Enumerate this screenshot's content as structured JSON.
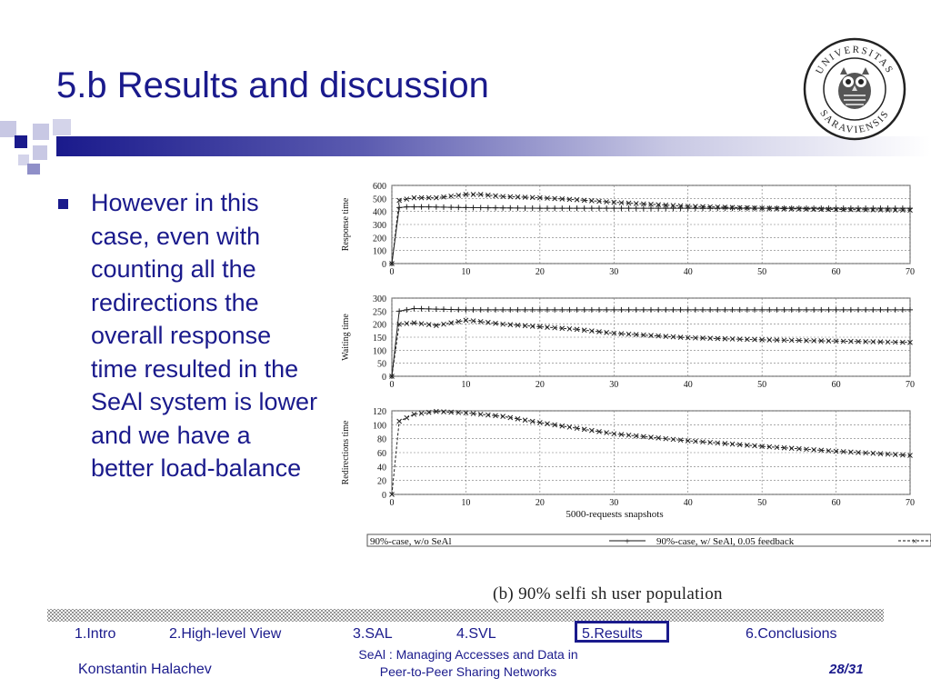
{
  "slide": {
    "title": "5.b Results and discussion",
    "bullet": "However in this case, even with counting all the redirections the overall response time resulted in the SeAl system is lower and we have a better load-balance",
    "caption": "(b) 90% selfi sh user population"
  },
  "seal": {
    "top_text": "UNIVERSITAS",
    "bottom_text": "SARAVIENSIS"
  },
  "nav": {
    "items": [
      "1.Intro",
      "2.High-level View",
      "3.SAL",
      "4.SVL",
      "5.Results",
      "6.Conclusions"
    ],
    "active": "5.Results"
  },
  "footer": {
    "author": "Konstantin Halachev",
    "subtitle_line1": "SeAl : Managing Accesses and Data in",
    "subtitle_line2": "Peer-to-Peer Sharing Networks",
    "page": "28/31"
  },
  "colors": {
    "accent": "#1a1a8c",
    "text": "#1a1a8c"
  },
  "chart_data": [
    {
      "type": "line",
      "ylabel": "Response time",
      "ylim": [
        0,
        600
      ],
      "yticks": [
        0,
        100,
        200,
        300,
        400,
        500,
        600
      ],
      "xlim": [
        0,
        70
      ],
      "xticks": [
        0,
        10,
        20,
        30,
        40,
        50,
        60,
        70
      ],
      "series": [
        {
          "name": "90%-case, w/o SeAl",
          "marker": "plus",
          "points": [
            [
              0,
              0
            ],
            [
              1,
              430
            ],
            [
              2,
              435
            ],
            [
              5,
              435
            ],
            [
              10,
              430
            ],
            [
              20,
              425
            ],
            [
              30,
              425
            ],
            [
              40,
              425
            ],
            [
              50,
              425
            ],
            [
              60,
              425
            ],
            [
              70,
              425
            ]
          ]
        },
        {
          "name": "90%-case, w/ SeAl, 0.05 feedback",
          "marker": "x",
          "points": [
            [
              0,
              0
            ],
            [
              1,
              485
            ],
            [
              3,
              505
            ],
            [
              6,
              505
            ],
            [
              10,
              530
            ],
            [
              12,
              530
            ],
            [
              15,
              515
            ],
            [
              20,
              505
            ],
            [
              25,
              490
            ],
            [
              30,
              470
            ],
            [
              40,
              440
            ],
            [
              50,
              425
            ],
            [
              60,
              415
            ],
            [
              70,
              410
            ]
          ]
        }
      ]
    },
    {
      "type": "line",
      "ylabel": "Waiting time",
      "ylim": [
        0,
        300
      ],
      "yticks": [
        0,
        50,
        100,
        150,
        200,
        250,
        300
      ],
      "xlim": [
        0,
        70
      ],
      "xticks": [
        0,
        10,
        20,
        30,
        40,
        50,
        60,
        70
      ],
      "series": [
        {
          "name": "90%-case, w/o SeAl",
          "marker": "plus",
          "points": [
            [
              0,
              0
            ],
            [
              1,
              250
            ],
            [
              3,
              260
            ],
            [
              10,
              255
            ],
            [
              20,
              255
            ],
            [
              30,
              255
            ],
            [
              40,
              255
            ],
            [
              50,
              255
            ],
            [
              60,
              255
            ],
            [
              70,
              255
            ]
          ]
        },
        {
          "name": "90%-case, w/ SeAl, 0.05 feedback",
          "marker": "x",
          "points": [
            [
              0,
              0
            ],
            [
              1,
              200
            ],
            [
              3,
              205
            ],
            [
              6,
              195
            ],
            [
              10,
              215
            ],
            [
              12,
              210
            ],
            [
              15,
              200
            ],
            [
              20,
              190
            ],
            [
              25,
              180
            ],
            [
              30,
              165
            ],
            [
              40,
              148
            ],
            [
              50,
              140
            ],
            [
              60,
              135
            ],
            [
              70,
              130
            ]
          ]
        }
      ]
    },
    {
      "type": "line",
      "ylabel": "Redirections time",
      "xlabel": "5000-requests snapshots",
      "ylim": [
        0,
        120
      ],
      "yticks": [
        0,
        20,
        40,
        60,
        80,
        100,
        120
      ],
      "xlim": [
        0,
        70
      ],
      "xticks": [
        0,
        10,
        20,
        30,
        40,
        50,
        60,
        70
      ],
      "series": [
        {
          "name": "90%-case, w/ SeAl, 0.05 feedback",
          "marker": "x",
          "points": [
            [
              0,
              0
            ],
            [
              1,
              105
            ],
            [
              3,
              115
            ],
            [
              6,
              119
            ],
            [
              10,
              117
            ],
            [
              15,
              112
            ],
            [
              20,
              103
            ],
            [
              25,
              95
            ],
            [
              30,
              87
            ],
            [
              40,
              77
            ],
            [
              50,
              69
            ],
            [
              60,
              62
            ],
            [
              70,
              56
            ]
          ]
        }
      ]
    }
  ],
  "legend": {
    "entry1": "90%-case, w/o SeAl",
    "entry2": "90%-case, w/  SeAl, 0.05 feedback"
  }
}
